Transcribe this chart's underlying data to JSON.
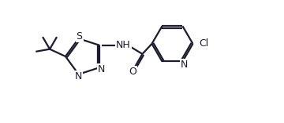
{
  "bg": "#ffffff",
  "lc": "#1c1c2e",
  "lw": 1.6,
  "fs": 9.0,
  "doff": 2.0,
  "figsize": [
    3.6,
    1.57
  ],
  "dpi": 100,
  "xlim": [
    0,
    360
  ],
  "ylim": [
    0,
    157
  ]
}
